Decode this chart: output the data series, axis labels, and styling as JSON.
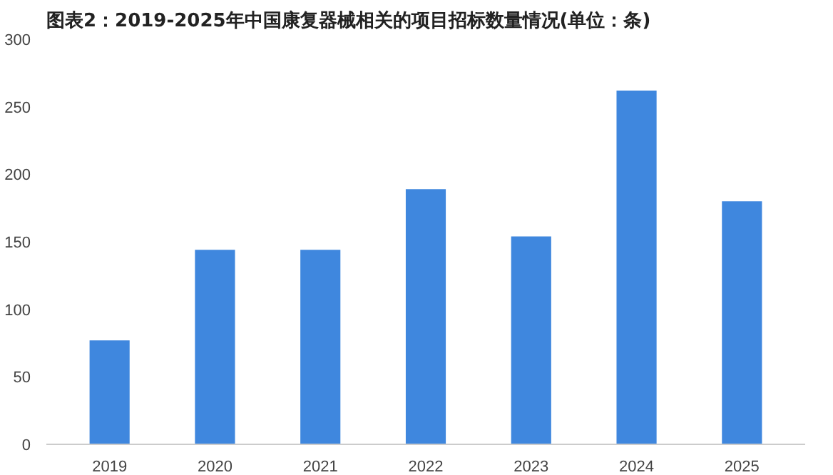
{
  "chart_data": {
    "type": "bar",
    "title": "图表2：2019-2025年中国康复器械相关的项目招标数量情况(单位：条)",
    "categories": [
      "2019",
      "2020",
      "2021",
      "2022",
      "2023",
      "2024",
      "2025"
    ],
    "values": [
      77,
      144,
      144,
      189,
      154,
      262,
      180
    ],
    "color": "#3f87de",
    "ylim": [
      0,
      300
    ],
    "yticks": [
      0,
      50,
      100,
      150,
      200,
      250,
      300
    ],
    "grid": false
  }
}
